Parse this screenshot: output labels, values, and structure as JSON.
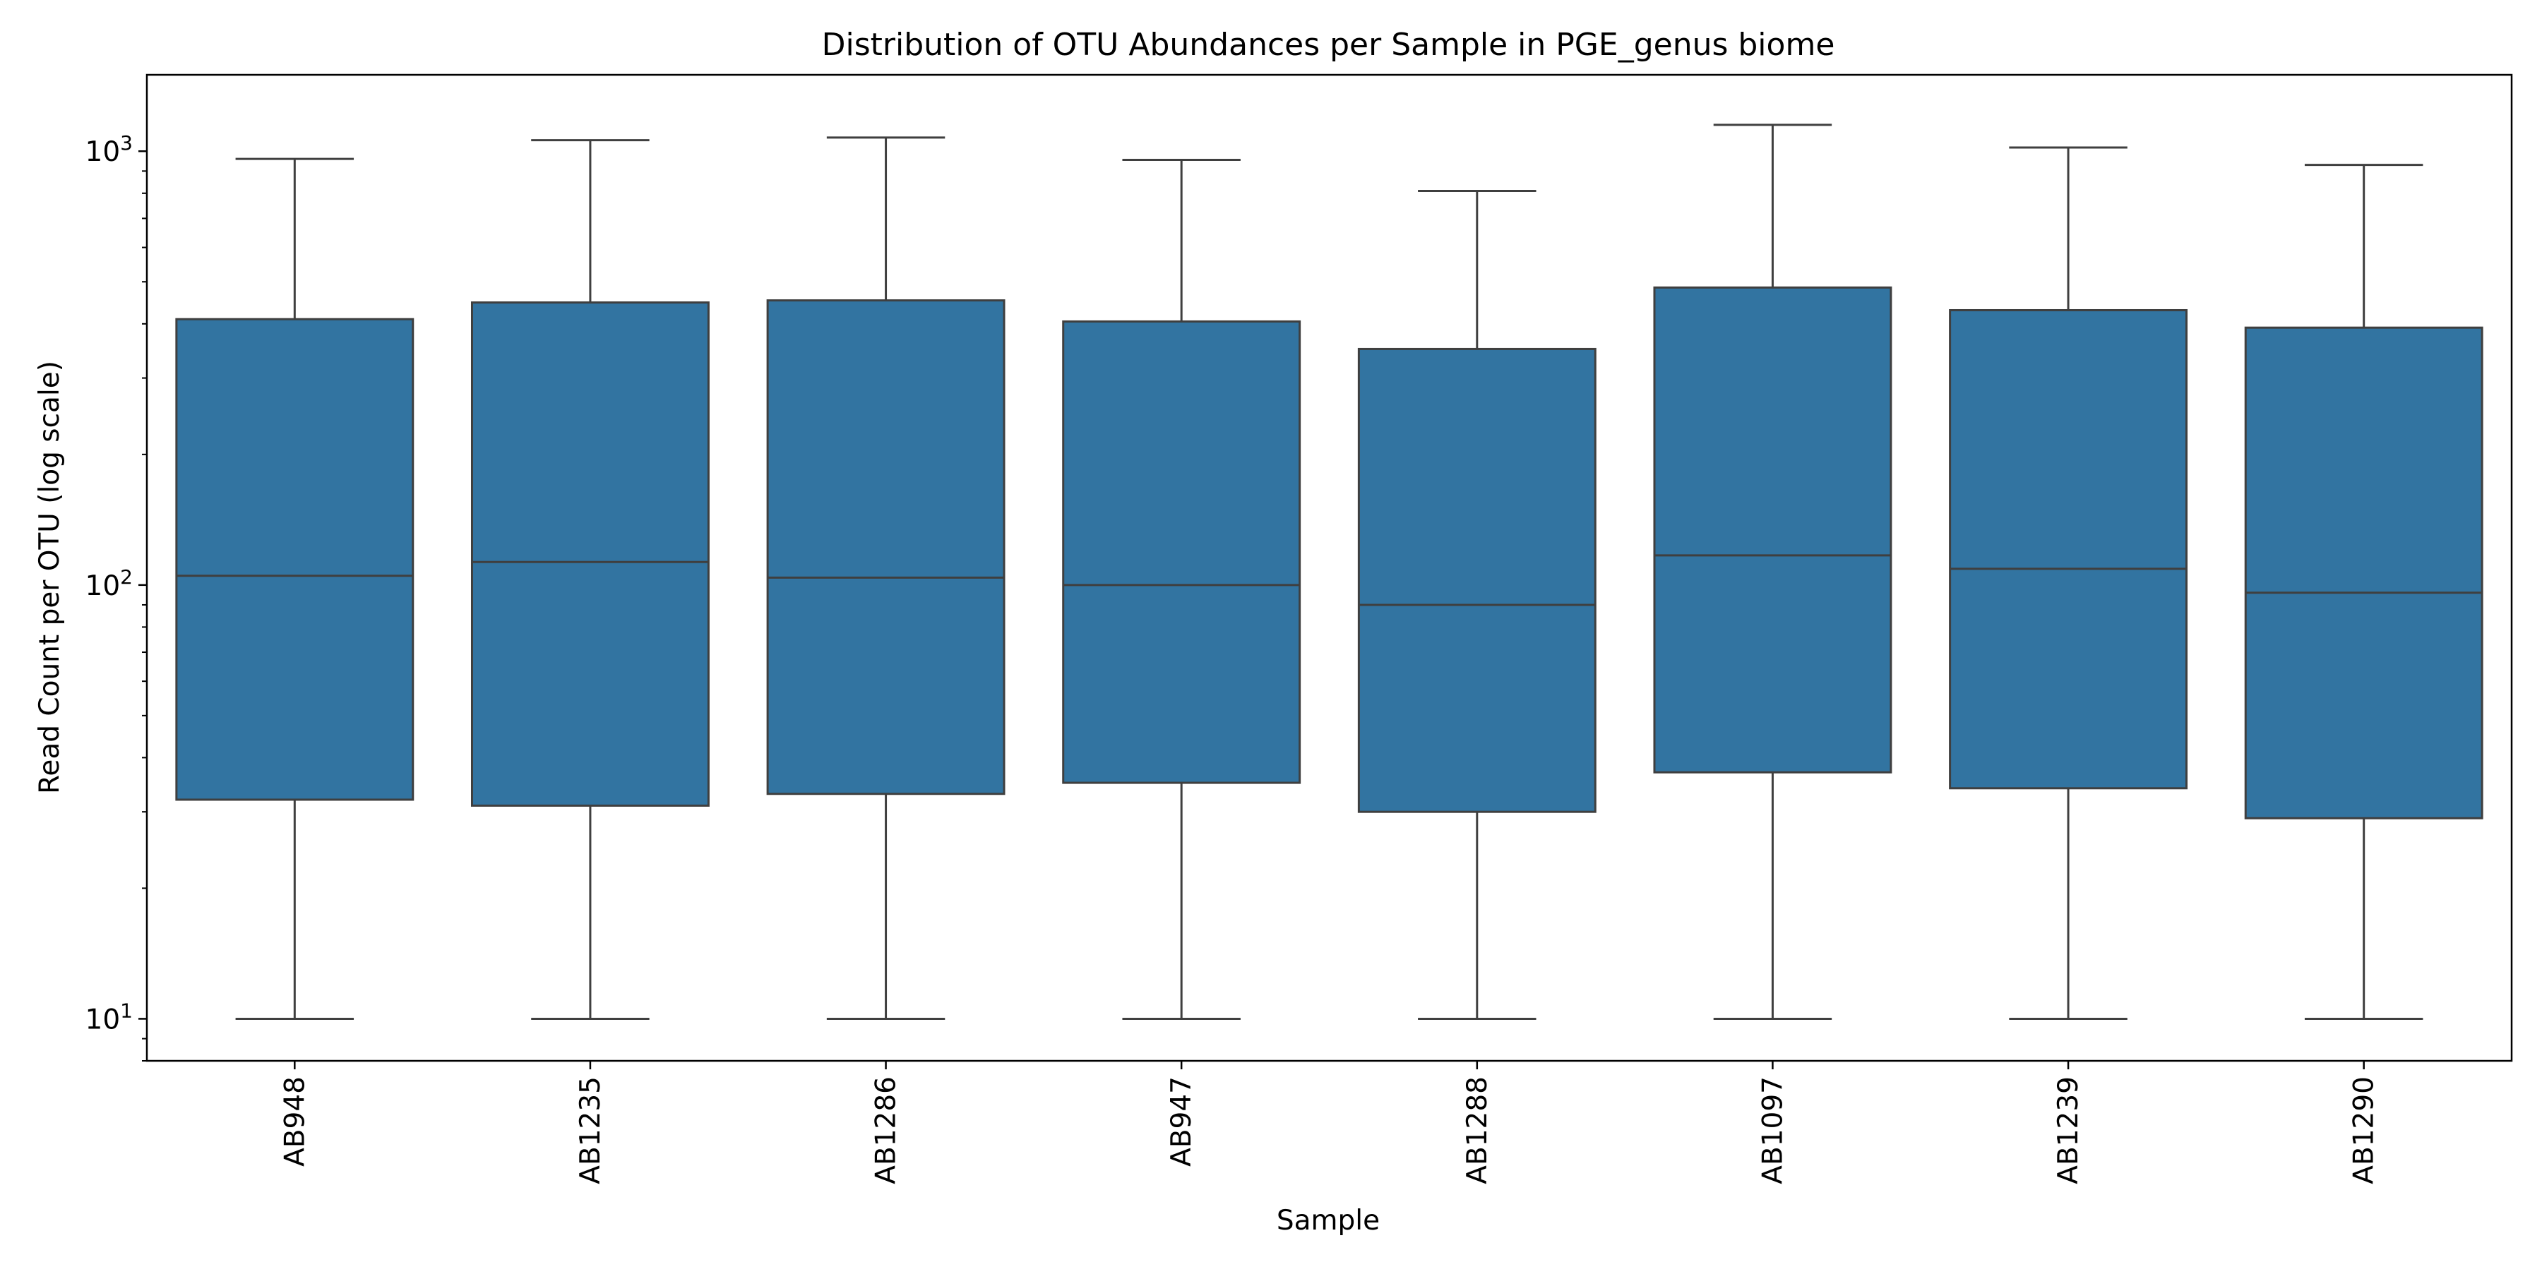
{
  "chart_data": {
    "type": "box",
    "title": "Distribution of OTU Abundances per Sample in  PGE_genus biome",
    "xlabel": "Sample",
    "ylabel": "Read Count per OTU (log scale)",
    "yscale": "log",
    "ylim": [
      8,
      1500
    ],
    "grid": false,
    "legend": "none",
    "box_color": "#3274a1",
    "line_color": "#3f3f3f",
    "y_ticks": [
      {
        "value": 10,
        "base": "10",
        "exp": "1"
      },
      {
        "value": 100,
        "base": "10",
        "exp": "2"
      },
      {
        "value": 1000,
        "base": "10",
        "exp": "3"
      }
    ],
    "categories": [
      "AB948",
      "AB1235",
      "AB1286",
      "AB947",
      "AB1288",
      "AB1097",
      "AB1239",
      "AB1290"
    ],
    "boxes": [
      {
        "sample": "AB948",
        "whisker_low": 10,
        "q1": 32,
        "median": 105,
        "q3": 410,
        "whisker_high": 960
      },
      {
        "sample": "AB1235",
        "whisker_low": 10,
        "q1": 31,
        "median": 113,
        "q3": 448,
        "whisker_high": 1060
      },
      {
        "sample": "AB1286",
        "whisker_low": 10,
        "q1": 33,
        "median": 104,
        "q3": 453,
        "whisker_high": 1075
      },
      {
        "sample": "AB947",
        "whisker_low": 10,
        "q1": 35,
        "median": 100,
        "q3": 405,
        "whisker_high": 955
      },
      {
        "sample": "AB1288",
        "whisker_low": 10,
        "q1": 30,
        "median": 90,
        "q3": 350,
        "whisker_high": 810
      },
      {
        "sample": "AB1097",
        "whisker_low": 10,
        "q1": 37,
        "median": 117,
        "q3": 485,
        "whisker_high": 1150
      },
      {
        "sample": "AB1239",
        "whisker_low": 10,
        "q1": 34,
        "median": 109,
        "q3": 430,
        "whisker_high": 1020
      },
      {
        "sample": "AB1290",
        "whisker_low": 10,
        "q1": 29,
        "median": 96,
        "q3": 392,
        "whisker_high": 930
      }
    ]
  }
}
